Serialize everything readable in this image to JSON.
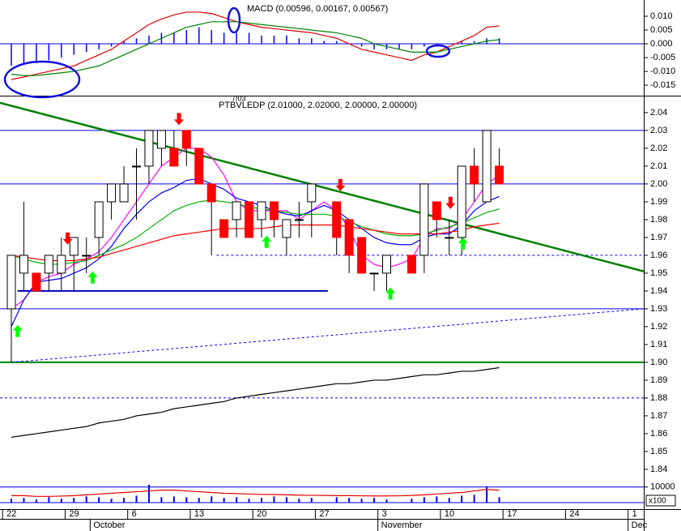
{
  "chart_data": [
    {
      "type": "macd",
      "title": "MACD (0.00596, 0.00167, 0.00567)",
      "ylim": [
        -0.0188,
        0.0153
      ],
      "yticks": [
        {
          "value": 0.01,
          "label": "0.010"
        },
        0.005,
        {
          "value": 0,
          "label": "0.000"
        },
        -0.005,
        {
          "value": -0.01,
          "label": "-0.010"
        },
        -0.015
      ],
      "levels": [
        {
          "value": 0,
          "color": "#0000ff"
        }
      ],
      "x": [
        0,
        1,
        2,
        3,
        4,
        5,
        6,
        7,
        8,
        9,
        10,
        11,
        12,
        13,
        14,
        15,
        16,
        17,
        18,
        19,
        20,
        21,
        22,
        23,
        24,
        25,
        26,
        27,
        28,
        29,
        30,
        31,
        32,
        33,
        34,
        35,
        36,
        37,
        38,
        39
      ],
      "histogram": {
        "color": "#0000ff",
        "values": [
          -0.008,
          -0.0075,
          -0.007,
          -0.006,
          -0.005,
          -0.004,
          -0.003,
          -0.002,
          -0.001,
          0.001,
          0.002,
          0.003,
          0.004,
          0.004,
          0.005,
          0.006,
          0.005,
          0.004,
          0.004,
          0.004,
          0.003,
          0.003,
          0.003,
          0.002,
          0.002,
          0.001,
          0.001,
          0,
          -0.001,
          -0.002,
          -0.002,
          -0.002,
          -0.002,
          -0.001,
          -0.001,
          0,
          0.001,
          0.001,
          0.002,
          0.002
        ]
      },
      "series": [
        {
          "color": "#e00000",
          "values": [
            -0.013,
            -0.012,
            -0.011,
            -0.01,
            -0.009,
            -0.008,
            -0.006,
            -0.004,
            -0.002,
            0.001,
            0.004,
            0.007,
            0.009,
            0.0105,
            0.0115,
            0.0115,
            0.011,
            0.0095,
            0.008,
            0.007,
            0.006,
            0.0055,
            0.005,
            0.0045,
            0.004,
            0.003,
            0.002,
            0,
            -0.002,
            -0.003,
            -0.004,
            -0.005,
            -0.006,
            -0.004,
            -0.003,
            -0.001,
            0.001,
            0.003,
            0.006,
            0.0065
          ]
        },
        {
          "color": "#008000",
          "values": [
            -0.011,
            -0.0115,
            -0.0115,
            -0.011,
            -0.0105,
            -0.01,
            -0.009,
            -0.008,
            -0.006,
            -0.004,
            -0.002,
            0,
            0.002,
            0.004,
            0.006,
            0.007,
            0.008,
            0.008,
            0.008,
            0.0075,
            0.007,
            0.0065,
            0.006,
            0.0055,
            0.005,
            0.0045,
            0.004,
            0.003,
            0.002,
            0,
            -0.001,
            -0.002,
            -0.003,
            -0.003,
            -0.003,
            -0.002,
            -0.001,
            0,
            0.001,
            0.0015
          ]
        }
      ]
    },
    {
      "type": "candlestick",
      "title": "PTBVLEDP (2.01000, 2.02000, 2.00000, 2.00000)",
      "subtitle": "7/03",
      "xlim": [
        -0.906,
        50.55
      ],
      "xticks": [
        {
          "value": -0.7,
          "label": "22"
        },
        {
          "value": 4.3,
          "label": "29"
        },
        {
          "value": 9.3,
          "label": "6"
        },
        {
          "value": 14.3,
          "label": "13"
        },
        {
          "value": 19.3,
          "label": "20"
        },
        {
          "value": 24.3,
          "label": "27"
        },
        {
          "value": 29.3,
          "label": "3"
        },
        {
          "value": 34.3,
          "label": "10"
        },
        {
          "value": 39.3,
          "label": "17"
        },
        {
          "value": 44.3,
          "label": "24"
        },
        {
          "value": 49.3,
          "label": "1"
        }
      ],
      "month_labels": [
        {
          "value": 6.3,
          "label": "October"
        },
        {
          "value": 29.3,
          "label": "November"
        },
        {
          "value": 49.3,
          "label": "Dec"
        }
      ],
      "ylim": [
        1.8177,
        2.0486
      ],
      "yticks": [
        2.04,
        2.03,
        2.02,
        2.01,
        {
          "value": 2,
          "label": "2.00"
        },
        1.99,
        1.98,
        1.97,
        1.96,
        1.95,
        1.94,
        1.93,
        1.92,
        1.91,
        {
          "value": 1.9,
          "label": "1.90"
        },
        1.89,
        1.88,
        1.87,
        1.86,
        1.85,
        1.84
      ],
      "up_color": "#ffffff",
      "down_color": "#ff0000",
      "candles": {
        "x": [
          0,
          1,
          2,
          3,
          4,
          5,
          6,
          7,
          8,
          9,
          10,
          11,
          12,
          13,
          14,
          15,
          16,
          17,
          18,
          19,
          20,
          21,
          22,
          23,
          24,
          26,
          27,
          28,
          29,
          30,
          32,
          33,
          34,
          35,
          36,
          37,
          38,
          39
        ],
        "open": [
          1.93,
          1.95,
          1.95,
          1.95,
          1.95,
          1.96,
          1.96,
          1.97,
          1.99,
          1.99,
          2.01,
          2.01,
          2.02,
          2.02,
          2.03,
          2.02,
          2,
          1.98,
          1.98,
          1.99,
          1.98,
          1.99,
          1.97,
          1.98,
          1.99,
          1.99,
          1.98,
          1.97,
          1.95,
          1.95,
          1.96,
          1.96,
          1.99,
          1.97,
          1.97,
          2.01,
          1.99,
          2.01
        ],
        "high": [
          1.96,
          1.99,
          1.95,
          1.96,
          1.97,
          1.97,
          1.97,
          1.99,
          2,
          2.01,
          2.02,
          2.03,
          2.03,
          2.03,
          2.03,
          2.02,
          2,
          1.98,
          1.99,
          1.99,
          1.99,
          1.99,
          1.98,
          1.99,
          2,
          1.99,
          1.98,
          1.97,
          1.95,
          1.96,
          1.96,
          2,
          1.99,
          1.98,
          2.01,
          2.02,
          2.03,
          2.02
        ],
        "low": [
          1.9,
          1.94,
          1.94,
          1.94,
          1.94,
          1.94,
          1.95,
          1.96,
          1.98,
          1.99,
          1.98,
          2,
          2.01,
          2.01,
          2.01,
          2,
          1.96,
          1.97,
          1.97,
          1.97,
          1.97,
          1.97,
          1.96,
          1.97,
          1.97,
          1.96,
          1.95,
          1.95,
          1.94,
          1.94,
          1.95,
          1.95,
          1.97,
          1.96,
          1.96,
          1.99,
          1.99,
          2
        ],
        "close": [
          1.96,
          1.96,
          1.94,
          1.96,
          1.96,
          1.97,
          1.96,
          1.99,
          2,
          2,
          2.01,
          2.03,
          2.03,
          2.01,
          2.02,
          2,
          1.99,
          1.97,
          1.99,
          1.97,
          1.99,
          1.98,
          1.98,
          1.98,
          2,
          1.97,
          1.96,
          1.95,
          1.95,
          1.96,
          1.95,
          2,
          1.98,
          1.97,
          2.01,
          2,
          2.03,
          2
        ]
      },
      "x": [
        0,
        1,
        2,
        3,
        4,
        5,
        6,
        7,
        8,
        9,
        10,
        11,
        12,
        13,
        14,
        15,
        16,
        17,
        18,
        19,
        20,
        21,
        22,
        23,
        24,
        25,
        26,
        27,
        28,
        29,
        30,
        31,
        32,
        33,
        34,
        35,
        36,
        37,
        38,
        39
      ],
      "series": [
        {
          "color": "#ff00ff",
          "values": [
            1.93,
            1.935,
            1.945,
            1.948,
            1.95,
            1.955,
            1.958,
            1.962,
            1.97,
            1.98,
            1.99,
            2,
            2.01,
            2.015,
            2.02,
            2.02,
            2.015,
            2.005,
            1.99,
            1.985,
            1.985,
            1.985,
            1.985,
            1.98,
            1.985,
            1.99,
            1.985,
            1.975,
            1.96,
            1.955,
            1.953,
            1.955,
            1.958,
            1.97,
            1.975,
            1.975,
            1.98,
            1.99,
            2,
            2.005
          ]
        },
        {
          "color": "#0000ff",
          "values": [
            1.92,
            1.935,
            1.945,
            1.946,
            1.947,
            1.95,
            1.953,
            1.958,
            1.965,
            1.975,
            1.983,
            1.99,
            1.995,
            1.998,
            2.002,
            2.003,
            2,
            1.997,
            1.992,
            1.99,
            1.988,
            1.985,
            1.983,
            1.982,
            1.985,
            1.988,
            1.985,
            1.98,
            1.975,
            1.97,
            1.967,
            1.966,
            1.966,
            1.97,
            1.972,
            1.972,
            1.977,
            1.985,
            1.99,
            1.993
          ]
        },
        {
          "color": "#00b000",
          "values": [
            1.96,
            1.958,
            1.956,
            1.955,
            1.955,
            1.956,
            1.957,
            1.96,
            1.963,
            1.966,
            1.97,
            1.975,
            1.98,
            1.985,
            1.988,
            1.99,
            1.991,
            1.99,
            1.989,
            1.987,
            1.986,
            1.985,
            1.984,
            1.983,
            1.983,
            1.983,
            1.982,
            1.979,
            1.976,
            1.974,
            1.972,
            1.971,
            1.971,
            1.972,
            1.974,
            1.976,
            1.978,
            1.981,
            1.984,
            1.986
          ]
        },
        {
          "color": "#ff0000",
          "values": [
            1.96,
            1.959,
            1.958,
            1.957,
            1.957,
            1.957,
            1.958,
            1.959,
            1.961,
            1.963,
            1.965,
            1.967,
            1.969,
            1.971,
            1.972,
            1.973,
            1.974,
            1.975,
            1.975,
            1.975,
            1.975,
            1.976,
            1.977,
            1.977,
            1.977,
            1.977,
            1.977,
            1.976,
            1.975,
            1.974,
            1.973,
            1.972,
            1.972,
            1.972,
            1.972,
            1.973,
            1.974,
            1.976,
            1.977,
            1.978
          ]
        },
        {
          "color": "#000000",
          "values": [
            1.858,
            1.859,
            1.86,
            1.861,
            1.862,
            1.863,
            1.864,
            1.866,
            1.867,
            1.868,
            1.87,
            1.871,
            1.872,
            1.874,
            1.875,
            1.876,
            1.877,
            1.878,
            1.88,
            1.881,
            1.882,
            1.883,
            1.884,
            1.885,
            1.886,
            1.887,
            1.888,
            1.888,
            1.889,
            1.89,
            1.89,
            1.891,
            1.892,
            1.893,
            1.893,
            1.894,
            1.895,
            1.895,
            1.896,
            1.897
          ]
        }
      ],
      "levels": [
        {
          "value": 2.03,
          "color": "#0000ff"
        },
        {
          "value": 2,
          "color": "#0000ff"
        },
        {
          "value": 1.93,
          "color": "#0000ff"
        },
        {
          "value": 1.96,
          "color": "#0000ff",
          "dash": true,
          "from": 16.4
        },
        {
          "value": 1.88,
          "color": "#0000ff",
          "dash": true
        },
        {
          "value": 1.9,
          "color": "#008000",
          "bold": true
        },
        {
          "value": 1.94,
          "color": "#0000c0",
          "bold": true,
          "from": 0.5,
          "to": 25.3
        }
      ],
      "trendlines": [
        {
          "color": "#008000",
          "bold": true,
          "x": [
            -0.906,
            50.55
          ],
          "values": [
            2.0455,
            1.951
          ]
        },
        {
          "color": "#0000ff",
          "dash": true,
          "x": [
            0,
            50.55
          ],
          "values": [
            1.9,
            1.93
          ]
        }
      ],
      "sell_signals": {
        "color": "#ff0000",
        "x": [
          4.5,
          13.4,
          26.3,
          35.1
        ],
        "values": [
          1.966,
          2.033,
          1.996,
          1.986
        ]
      },
      "buy_signals": {
        "color": "#00ff00",
        "x": [
          0.5,
          6.5,
          20.4,
          30.3,
          36.1
        ],
        "values": [
          1.921,
          1.951,
          1.971,
          1.942,
          1.97
        ]
      }
    },
    {
      "type": "bar",
      "unit_label": "x100",
      "ylim": [
        0,
        13000
      ],
      "yticks": [
        10000
      ],
      "levels": [
        {
          "value": 10000,
          "color": "#0000ff"
        },
        {
          "value": 0,
          "color": "#0000ff"
        }
      ],
      "color": "#0000ff",
      "x": [
        0,
        1,
        2,
        3,
        4,
        5,
        6,
        7,
        8,
        9,
        10,
        11,
        12,
        13,
        14,
        15,
        16,
        17,
        18,
        19,
        20,
        21,
        22,
        23,
        24,
        25,
        26,
        27,
        28,
        29,
        30,
        31,
        32,
        33,
        34,
        35,
        36,
        37,
        38,
        39
      ],
      "values": [
        2500,
        3000,
        2000,
        3500,
        2500,
        3000,
        4000,
        3500,
        2500,
        3000,
        4500,
        11500,
        3500,
        4000,
        3500,
        3000,
        4000,
        3000,
        3500,
        2500,
        3000,
        4000,
        3500,
        2500,
        3000,
        null,
        3500,
        3000,
        2500,
        3000,
        2000,
        null,
        2500,
        3500,
        4000,
        3000,
        4500,
        5000,
        10500,
        3500
      ],
      "series": [
        {
          "color": "#e00000",
          "values": [
            4500,
            4500,
            4000,
            4000,
            4200,
            4500,
            5000,
            5500,
            6000,
            6500,
            7000,
            7500,
            8000,
            8000,
            7500,
            7000,
            6500,
            6000,
            5800,
            5500,
            5300,
            5200,
            5000,
            4800,
            4700,
            4600,
            4500,
            4500,
            4400,
            4300,
            4300,
            4400,
            4600,
            5000,
            5500,
            6000,
            6500,
            7500,
            8500,
            8000
          ]
        }
      ]
    }
  ]
}
